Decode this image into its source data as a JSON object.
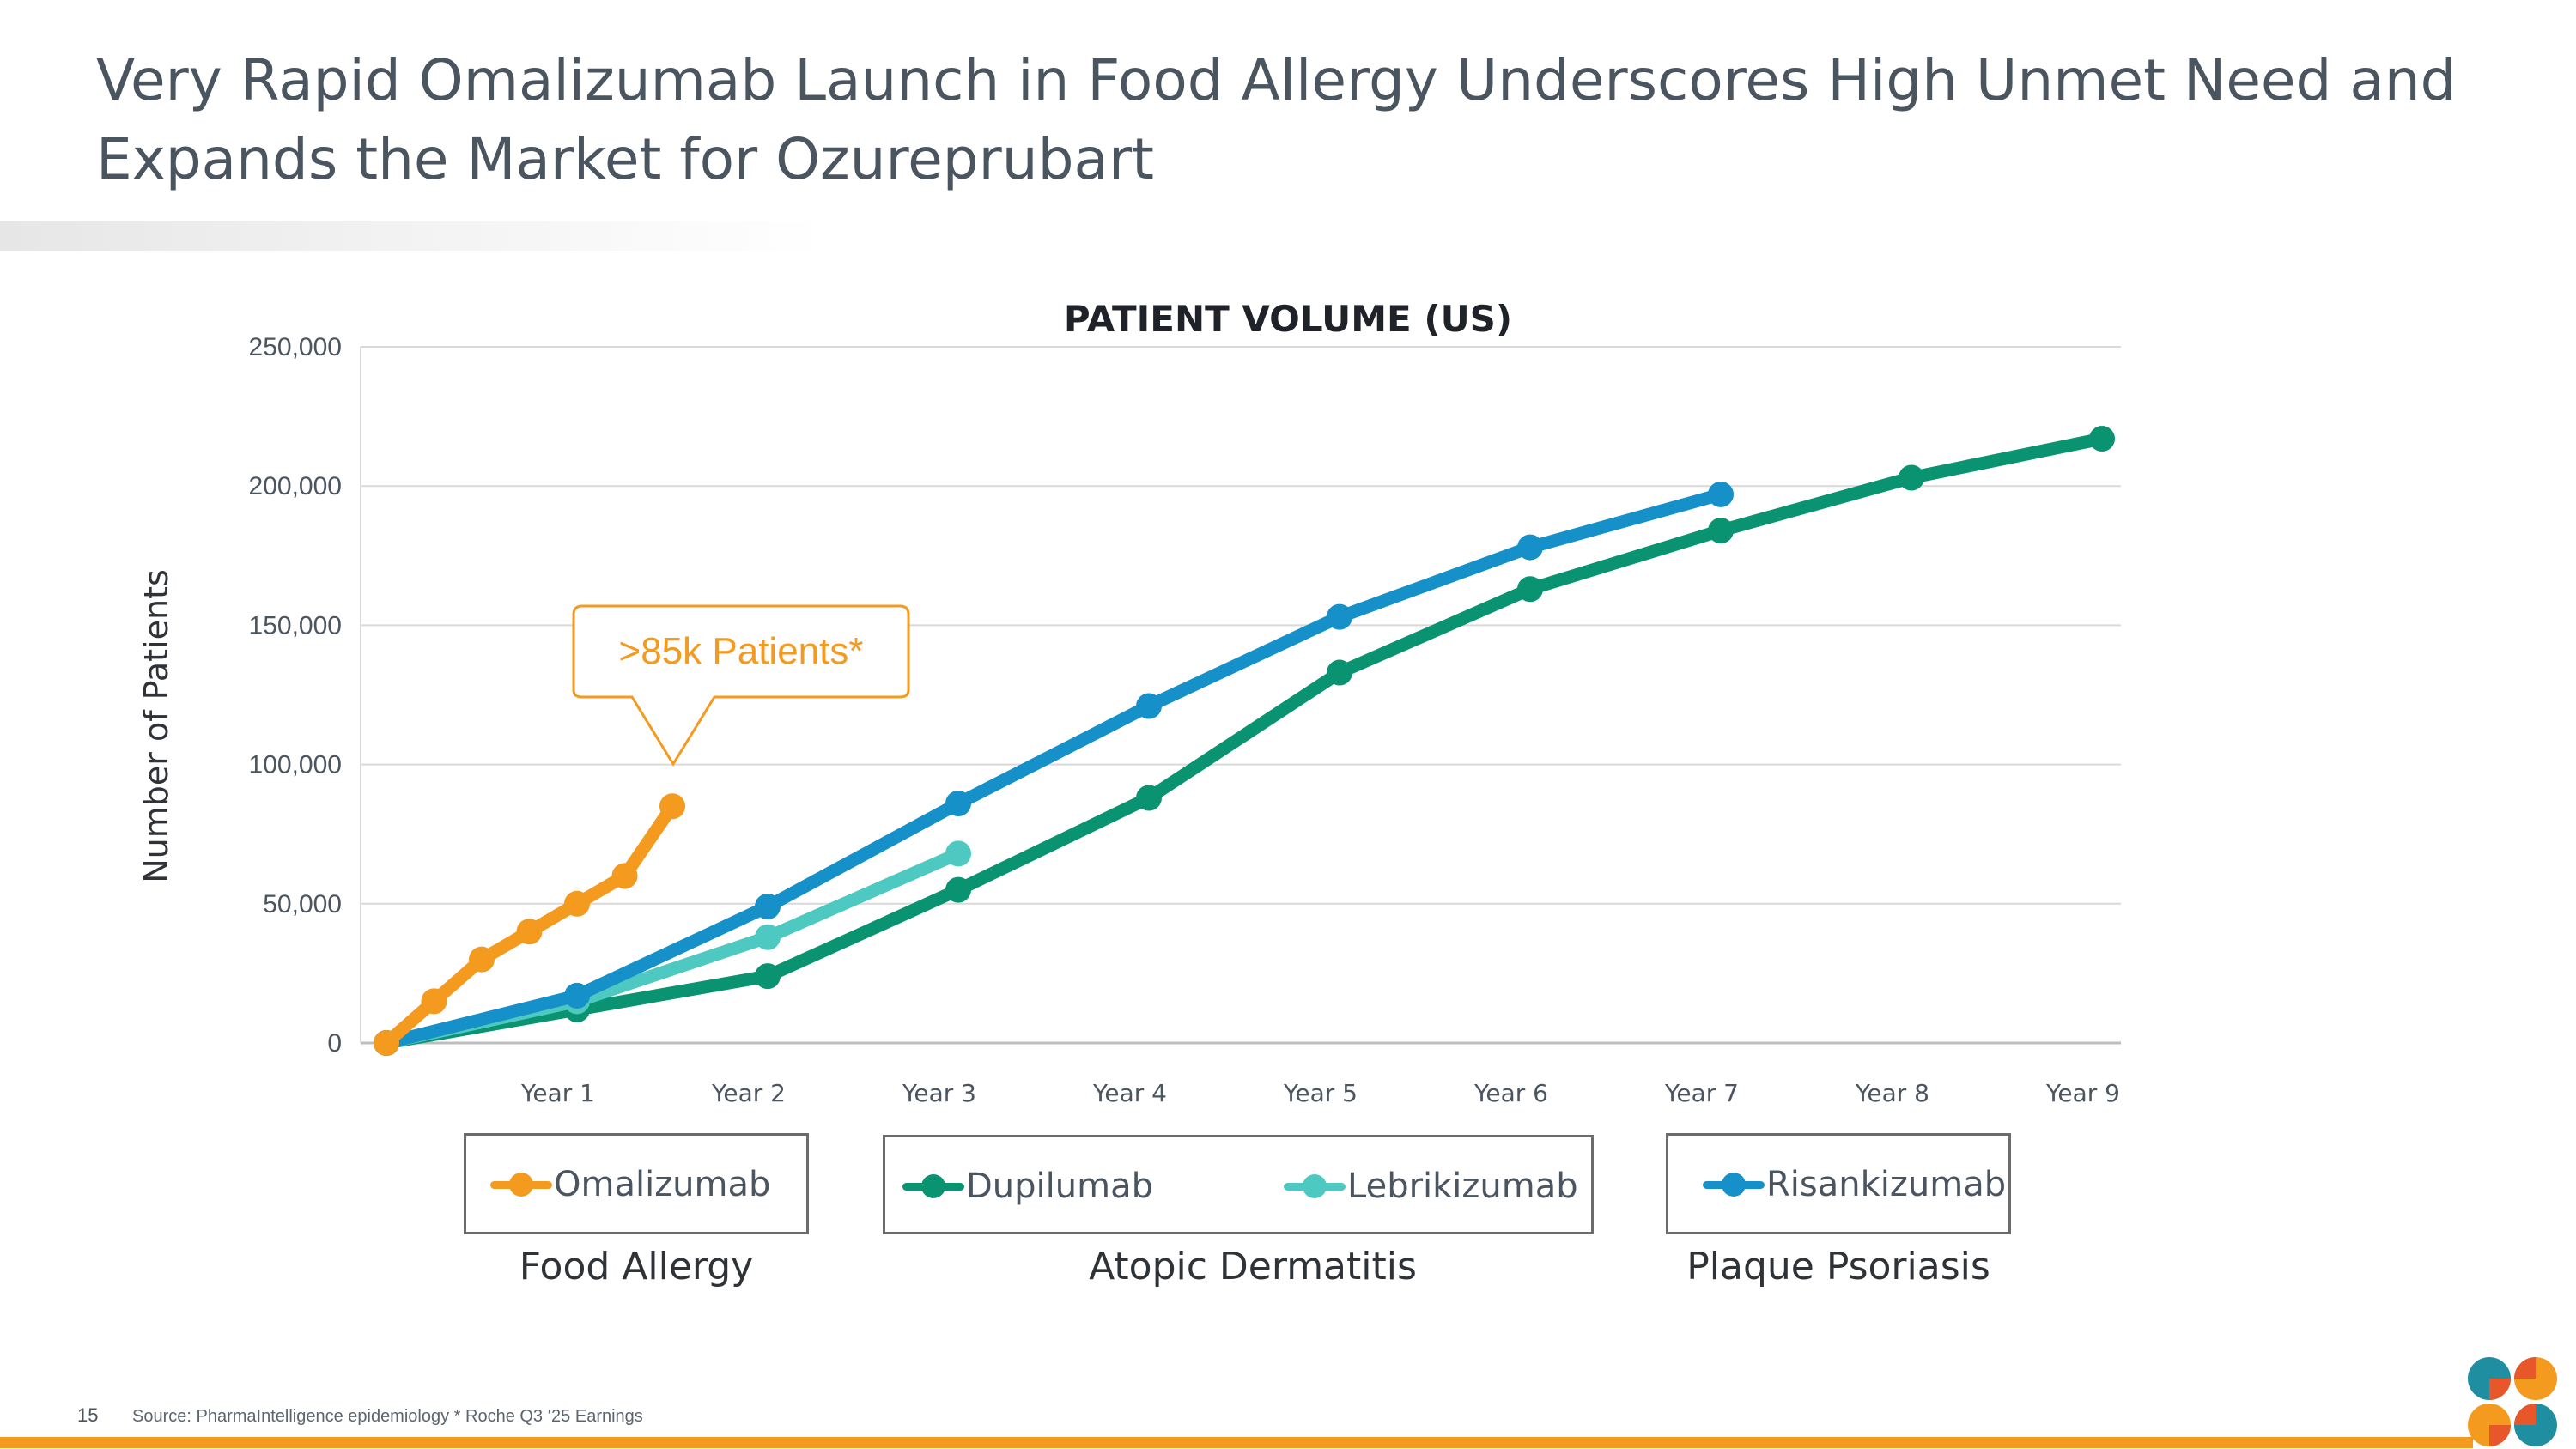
{
  "slide": {
    "title_line1": "Very Rapid Omalizumab Launch in Food Allergy Underscores High Unmet Need and",
    "title_line2": "Expands the Market for Ozureprubart",
    "page_number": "15",
    "source": "Source: PharmaIntelligence epidemiology  * Roche Q3 ‘25 Earnings",
    "accent_color": "#f39a1f"
  },
  "callout": {
    "text": ">85k Patients*",
    "color": "#f39a1f"
  },
  "legend_groups": [
    {
      "label": "Food Allergy",
      "items": [
        "Omalizumab"
      ]
    },
    {
      "label": "Atopic Dermatitis",
      "items": [
        "Dupilumab",
        "Lebrikizumab"
      ]
    },
    {
      "label": "Plaque Psoriasis",
      "items": [
        "Risankizumab"
      ]
    }
  ],
  "chart_data": {
    "type": "line",
    "title": "PATIENT VOLUME (US)",
    "ylabel": "Number of Patients",
    "xlabel": "",
    "ylim": [
      0,
      250000
    ],
    "xlim": [
      0,
      9
    ],
    "y_ticks": [
      0,
      50000,
      100000,
      150000,
      200000,
      250000
    ],
    "y_tick_labels": [
      "0",
      "50,000",
      "100,000",
      "150,000",
      "200,000",
      "250,000"
    ],
    "x_ticks": [
      1,
      2,
      3,
      4,
      5,
      6,
      7,
      8,
      9
    ],
    "x_tick_labels": [
      "Year 1",
      "Year 2",
      "Year 3",
      "Year 4",
      "Year 5",
      "Year 6",
      "Year 7",
      "Year 8",
      "Year 9"
    ],
    "grid": "horizontal",
    "series": [
      {
        "name": "Omalizumab",
        "color": "#f39a1f",
        "x": [
          0,
          0.25,
          0.5,
          0.75,
          1.0,
          1.25,
          1.5
        ],
        "y": [
          0,
          15000,
          30000,
          40000,
          50000,
          60000,
          85000
        ]
      },
      {
        "name": "Dupilumab",
        "color": "#0a9370",
        "x": [
          0,
          1,
          2,
          3,
          4,
          5,
          6,
          7,
          8,
          9
        ],
        "y": [
          0,
          12000,
          24000,
          55000,
          88000,
          133000,
          163000,
          184000,
          203000,
          217000
        ]
      },
      {
        "name": "Lebrikizumab",
        "color": "#4ec9c1",
        "x": [
          0,
          1,
          2,
          3
        ],
        "y": [
          0,
          15000,
          38000,
          68000
        ]
      },
      {
        "name": "Risankizumab",
        "color": "#1590c8",
        "x": [
          0,
          1,
          2,
          3,
          4,
          5,
          6,
          7
        ],
        "y": [
          0,
          17000,
          49000,
          86000,
          121000,
          153000,
          178000,
          197000
        ]
      }
    ]
  }
}
